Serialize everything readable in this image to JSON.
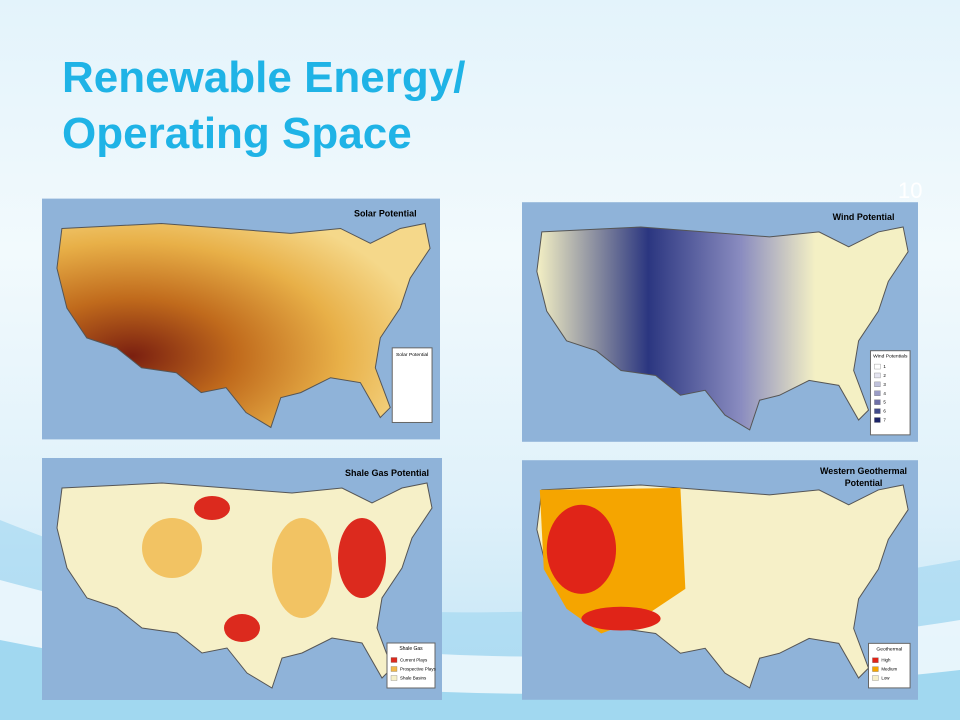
{
  "header": {
    "title": [
      "Renewable Energy/",
      "Operating Space"
    ],
    "slide_number": "10"
  },
  "maps": [
    {
      "title": [
        "Solar Potential"
      ],
      "legend": {
        "title": "Solar Potential",
        "items": []
      }
    },
    {
      "title": [
        "Wind Potential"
      ],
      "legend": {
        "title": "Wind Potentials",
        "items": [
          "1",
          "2",
          "3",
          "4",
          "5",
          "6",
          "7"
        ]
      }
    },
    {
      "title": [
        "Shale Gas Potential"
      ],
      "legend": {
        "title": "Shale Gas",
        "items": [
          "Current Plays",
          "Prospective Plays",
          "Shale Basins"
        ]
      }
    },
    {
      "title": [
        "Western Geothermal",
        "Potential"
      ],
      "legend": {
        "title": "Geothermal",
        "items": [
          "High",
          "Medium",
          "Low"
        ]
      }
    }
  ]
}
